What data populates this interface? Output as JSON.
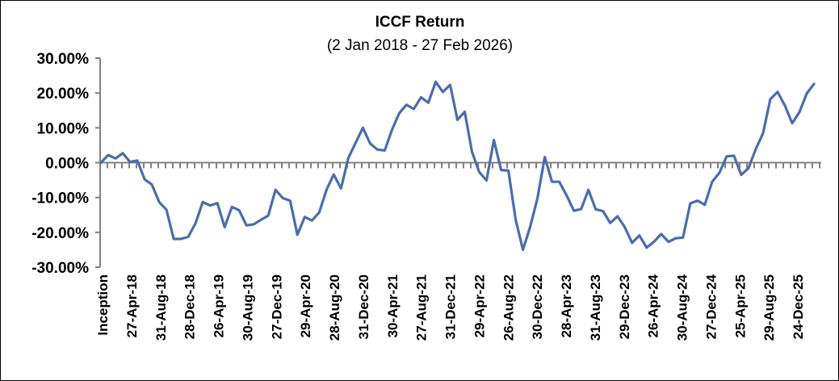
{
  "chart_data": {
    "type": "line",
    "title": "ICCF Return",
    "subtitle": "(2 Jan 2018 - 27 Feb 2026)",
    "xlabel": "",
    "ylabel": "",
    "ylim": [
      -30,
      30
    ],
    "y_ticks": [
      "30.00%",
      "20.00%",
      "10.00%",
      "0.00%",
      "-10.00%",
      "-20.00%",
      "-30.00%"
    ],
    "y_tick_values": [
      30,
      20,
      10,
      0,
      -10,
      -20,
      -30
    ],
    "x_tick_labels": [
      "Inception",
      "27-Apr-18",
      "31-Aug-18",
      "28-Dec-18",
      "26-Apr-19",
      "30-Aug-19",
      "27-Dec-19",
      "29-Apr-20",
      "28-Aug-20",
      "31-Dec-20",
      "30-Apr-21",
      "27-Aug-21",
      "31-Dec-21",
      "29-Apr-22",
      "26-Aug-22",
      "30-Dec-22",
      "28-Apr-23",
      "31-Aug-23",
      "29-Dec-23",
      "26-Apr-24",
      "30-Aug-24",
      "27-Dec-24",
      "25-Apr-25",
      "29-Aug-25",
      "24-Dec-25"
    ],
    "grid": false,
    "legend": "none",
    "series": [
      {
        "color": "#4a6cb4",
        "values": [
          0,
          2.2,
          1.2,
          2.7,
          0.2,
          0.6,
          -4.8,
          -6.3,
          -11.3,
          -13.5,
          -21.9,
          -21.9,
          -21.3,
          -17.4,
          -11.3,
          -12.3,
          -11.6,
          -18.5,
          -12.7,
          -13.7,
          -18,
          -17.7,
          -16.4,
          -15.2,
          -7.8,
          -10.2,
          -10.9,
          -20.7,
          -15.6,
          -16.6,
          -14.3,
          -7.8,
          -3.4,
          -7.4,
          1.3,
          5.7,
          10,
          5.5,
          3.75,
          3.5,
          9.4,
          14.2,
          16.6,
          15.4,
          18.75,
          17.2,
          23.2,
          20.3,
          22.3,
          12.3,
          14.6,
          3.1,
          -2.7,
          -5.1,
          6.5,
          -2.1,
          -2.3,
          -16.4,
          -25,
          -18.4,
          -10.2,
          1.6,
          -5.5,
          -5.5,
          -9.4,
          -13.8,
          -13.3,
          -7.8,
          -13.4,
          -13.9,
          -17.3,
          -15.4,
          -18.5,
          -23,
          -20.9,
          -24.4,
          -22.7,
          -20.5,
          -22.7,
          -21.7,
          -21.5,
          -11.7,
          -10.9,
          -12.1,
          -5.5,
          -2.9,
          1.8,
          2,
          -3.5,
          -1.6,
          3.9,
          8.4,
          18.2,
          20.3,
          16.4,
          11.3,
          14.5,
          19.8,
          22.6
        ]
      }
    ]
  }
}
